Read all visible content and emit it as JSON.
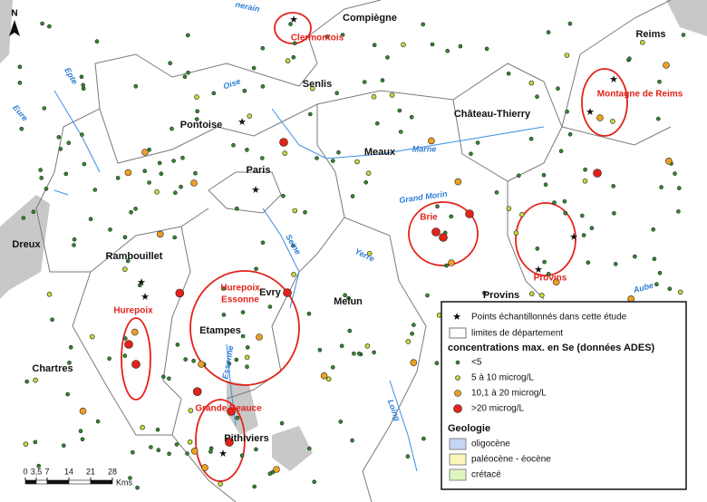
{
  "places": [
    "Compiègne",
    "Reims",
    "Senlis",
    "Pontoise",
    "Château-Thierry",
    "Meaux",
    "Paris",
    "Dreux",
    "Rambouillet",
    "Evry",
    "Melun",
    "Provins",
    "Etampes",
    "Chartres",
    "Pithiviers"
  ],
  "zones": [
    {
      "label": "Clermontois"
    },
    {
      "label": "Montagne de Reims"
    },
    {
      "label": "Brie"
    },
    {
      "label": "Provins"
    },
    {
      "label": [
        "Hurepoix",
        "Essonne"
      ]
    },
    {
      "label": "Hurepoix"
    },
    {
      "label": "Grande Beauce"
    }
  ],
  "rivers": [
    "nerain",
    "Epte",
    "Eure",
    "Oise",
    "Marne",
    "Grand Morin",
    "Yerre",
    "Seine",
    "Essonne",
    "Loing",
    "Aube"
  ],
  "legend": {
    "star": "Points échantillonnés dans cette étude",
    "boundary": "limites de département",
    "concentration_title": "concentrations max. en Se (données ADES)",
    "classes": [
      {
        "label": "<5",
        "color": "#2e8b2e"
      },
      {
        "label": "5 à 10 microg/L",
        "color": "#c6d93a"
      },
      {
        "label": "10,1 à 20 microg/L",
        "color": "#f0a020"
      },
      {
        "label": ">20 microg/L",
        "color": "#e2231a"
      }
    ],
    "geology_title": "Geologie",
    "geology": [
      {
        "label": "oligocène",
        "color": "#c5d5f5"
      },
      {
        "label": "paléocène - éocène",
        "color": "#fbf5b8"
      },
      {
        "label": "crétacé",
        "color": "#dff5c0"
      }
    ]
  },
  "scale": {
    "ticks": [
      0,
      {
        "value": 3.5,
        "label": "3,5"
      },
      7,
      14,
      21,
      28
    ],
    "unit": "Kms"
  }
}
